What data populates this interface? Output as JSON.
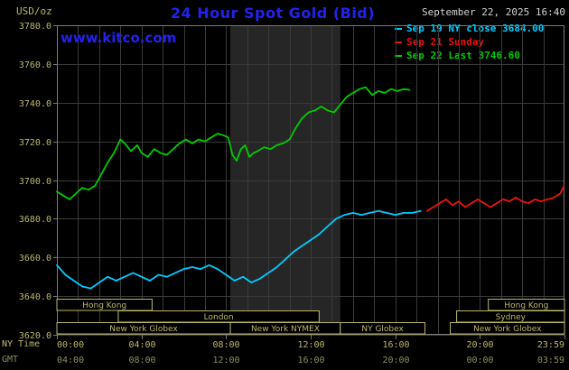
{
  "header": {
    "units_label": "USD/oz",
    "title": "24 Hour Spot Gold (Bid)",
    "datetime": "September 22, 2025 16:40",
    "watermark": "www.kitco.com"
  },
  "legend": [
    {
      "label": "Sep 19 NY close 3684.00",
      "color": "#00ccff"
    },
    {
      "label": "Sep 21 Sunday",
      "color": "#ee1111"
    },
    {
      "label": "Sep 22 Last 3746.60",
      "color": "#00cc00"
    }
  ],
  "axis": {
    "ny_row_label": "NY Time",
    "gmt_row_label": "GMT"
  },
  "chart_data": {
    "type": "line",
    "title": "24 Hour Spot Gold (Bid)",
    "ylabel": "USD/oz",
    "xlim": [
      0,
      24
    ],
    "ylim": [
      3620,
      3780
    ],
    "ytick_step": 20,
    "x_major_hours": [
      0,
      4,
      8,
      12,
      16,
      20,
      23.983
    ],
    "ny_tick_labels": [
      "00:00",
      "04:00",
      "08:00",
      "12:00",
      "16:00",
      "20:00",
      "23:59"
    ],
    "gmt_tick_labels": [
      "04:00",
      "08:00",
      "12:00",
      "16:00",
      "20:00",
      "00:00",
      "03:59"
    ],
    "grid": true,
    "colors": {
      "background": "#000000",
      "grid": "#3a3a3a",
      "axis_border": "#7a7a7a",
      "tick_text": "#bdb76b",
      "gmt_text": "#8f8f63",
      "band": "#262626",
      "band_dark": "#2e2e2e",
      "session_border": "#bdb76b",
      "session_text": "#bdb76b"
    },
    "bands": [
      {
        "start": 8.2,
        "end": 13.4
      }
    ],
    "sessions": [
      {
        "row": 0,
        "label": "Hong Kong",
        "start": 0,
        "end": 4.5
      },
      {
        "row": 0,
        "label": "Hong Kong",
        "start": 20.4,
        "end": 24
      },
      {
        "row": 1,
        "label": "London",
        "start": 2.9,
        "end": 12.4
      },
      {
        "row": 1,
        "label": "Sydney",
        "start": 18.9,
        "end": 24
      },
      {
        "row": 2,
        "label": "New York Globex",
        "start": 0,
        "end": 8.2
      },
      {
        "row": 2,
        "label": "New York NYMEX",
        "start": 8.2,
        "end": 13.4
      },
      {
        "row": 2,
        "label": "NY Globex",
        "start": 13.4,
        "end": 17.4
      },
      {
        "row": 2,
        "label": "New York Globex",
        "start": 18.6,
        "end": 24
      }
    ],
    "series": [
      {
        "name": "Sep 19 NY close",
        "color": "#00ccff",
        "points": [
          [
            0,
            3656
          ],
          [
            0.4,
            3651
          ],
          [
            0.8,
            3648
          ],
          [
            1.2,
            3645
          ],
          [
            1.6,
            3644
          ],
          [
            2,
            3647
          ],
          [
            2.4,
            3650
          ],
          [
            2.8,
            3648
          ],
          [
            3.2,
            3650
          ],
          [
            3.6,
            3652
          ],
          [
            4,
            3650
          ],
          [
            4.4,
            3648
          ],
          [
            4.8,
            3651
          ],
          [
            5.2,
            3650
          ],
          [
            5.6,
            3652
          ],
          [
            6,
            3654
          ],
          [
            6.4,
            3655
          ],
          [
            6.8,
            3654
          ],
          [
            7.2,
            3656
          ],
          [
            7.6,
            3654
          ],
          [
            8,
            3651
          ],
          [
            8.4,
            3648
          ],
          [
            8.8,
            3650
          ],
          [
            9.2,
            3647
          ],
          [
            9.6,
            3649
          ],
          [
            10,
            3652
          ],
          [
            10.4,
            3655
          ],
          [
            10.8,
            3659
          ],
          [
            11.2,
            3663
          ],
          [
            11.6,
            3666
          ],
          [
            12,
            3669
          ],
          [
            12.4,
            3672
          ],
          [
            12.8,
            3676
          ],
          [
            13.2,
            3680
          ],
          [
            13.6,
            3682
          ],
          [
            14,
            3683
          ],
          [
            14.4,
            3682
          ],
          [
            14.8,
            3683
          ],
          [
            15.2,
            3684
          ],
          [
            15.6,
            3683
          ],
          [
            16,
            3682
          ],
          [
            16.4,
            3683
          ],
          [
            16.8,
            3683
          ],
          [
            17.2,
            3684
          ]
        ]
      },
      {
        "name": "Sep 21 Sunday",
        "color": "#ee1111",
        "points": [
          [
            17.5,
            3684
          ],
          [
            17.8,
            3686
          ],
          [
            18.1,
            3688
          ],
          [
            18.4,
            3690
          ],
          [
            18.7,
            3687
          ],
          [
            19,
            3689
          ],
          [
            19.3,
            3686
          ],
          [
            19.6,
            3688
          ],
          [
            19.9,
            3690
          ],
          [
            20.2,
            3688
          ],
          [
            20.5,
            3686
          ],
          [
            20.8,
            3688
          ],
          [
            21.1,
            3690
          ],
          [
            21.4,
            3689
          ],
          [
            21.7,
            3691
          ],
          [
            22,
            3689
          ],
          [
            22.3,
            3688
          ],
          [
            22.6,
            3690
          ],
          [
            22.9,
            3689
          ],
          [
            23.2,
            3690
          ],
          [
            23.5,
            3691
          ],
          [
            23.8,
            3693
          ],
          [
            23.98,
            3697
          ]
        ]
      },
      {
        "name": "Sep 22 Last",
        "color": "#00cc00",
        "points": [
          [
            0,
            3694
          ],
          [
            0.3,
            3692
          ],
          [
            0.6,
            3690
          ],
          [
            0.9,
            3693
          ],
          [
            1.2,
            3696
          ],
          [
            1.5,
            3695
          ],
          [
            1.8,
            3697
          ],
          [
            2.1,
            3703
          ],
          [
            2.4,
            3709
          ],
          [
            2.7,
            3714
          ],
          [
            3,
            3721
          ],
          [
            3.2,
            3719
          ],
          [
            3.5,
            3715
          ],
          [
            3.8,
            3718
          ],
          [
            4,
            3714
          ],
          [
            4.3,
            3712
          ],
          [
            4.6,
            3716
          ],
          [
            4.9,
            3714
          ],
          [
            5.2,
            3713
          ],
          [
            5.5,
            3716
          ],
          [
            5.8,
            3719
          ],
          [
            6.1,
            3721
          ],
          [
            6.4,
            3719
          ],
          [
            6.7,
            3721
          ],
          [
            7,
            3720
          ],
          [
            7.3,
            3722
          ],
          [
            7.6,
            3724
          ],
          [
            7.9,
            3723
          ],
          [
            8.1,
            3722
          ],
          [
            8.3,
            3713
          ],
          [
            8.5,
            3710
          ],
          [
            8.7,
            3716
          ],
          [
            8.9,
            3718
          ],
          [
            9.1,
            3712
          ],
          [
            9.3,
            3714
          ],
          [
            9.5,
            3715
          ],
          [
            9.8,
            3717
          ],
          [
            10.1,
            3716
          ],
          [
            10.4,
            3718
          ],
          [
            10.7,
            3719
          ],
          [
            11,
            3721
          ],
          [
            11.3,
            3727
          ],
          [
            11.6,
            3732
          ],
          [
            11.9,
            3735
          ],
          [
            12.2,
            3736
          ],
          [
            12.5,
            3738
          ],
          [
            12.8,
            3736
          ],
          [
            13.1,
            3735
          ],
          [
            13.4,
            3739
          ],
          [
            13.7,
            3743
          ],
          [
            14,
            3745
          ],
          [
            14.3,
            3747
          ],
          [
            14.6,
            3748
          ],
          [
            14.9,
            3744
          ],
          [
            15.2,
            3746
          ],
          [
            15.5,
            3745
          ],
          [
            15.8,
            3747
          ],
          [
            16.1,
            3746
          ],
          [
            16.4,
            3747
          ],
          [
            16.67,
            3746.6
          ]
        ]
      }
    ]
  }
}
